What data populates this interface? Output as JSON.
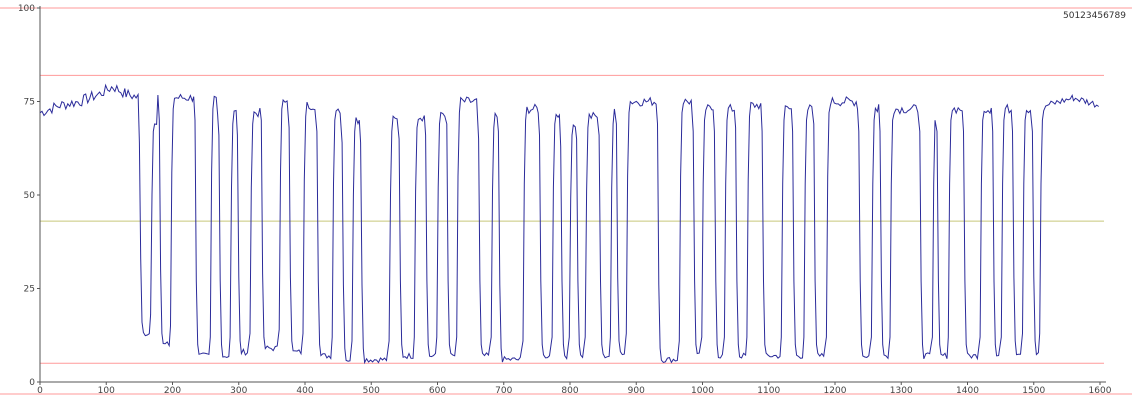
{
  "chart_data": {
    "type": "line",
    "title": "",
    "xlabel": "",
    "ylabel": "",
    "xlim": [
      0,
      1600
    ],
    "ylim": [
      0,
      100
    ],
    "x_ticks": [
      0,
      100,
      200,
      300,
      400,
      500,
      600,
      700,
      800,
      900,
      1000,
      1100,
      1200,
      1300,
      1400,
      1500,
      1600
    ],
    "y_ticks": [
      0,
      25,
      50,
      75,
      100
    ],
    "grid": false,
    "identifier_text": "50123456789",
    "colors": {
      "series": "#2b2b9a",
      "upper_limit": "#ff9a9a",
      "lower_limit": "#ff9a9a",
      "center_line": "#c8c87a",
      "axis": "#555555"
    },
    "reference_lines": [
      {
        "role": "top-border",
        "y": 100
      },
      {
        "role": "upper-limit",
        "y": 82
      },
      {
        "role": "center",
        "y": 43
      },
      {
        "role": "lower-limit",
        "y": 5
      }
    ],
    "series": [
      {
        "low_level": 7,
        "start_segment": {
          "x": [
            0,
            30,
            60,
            90,
            110,
            130,
            150
          ],
          "y": [
            72,
            74,
            75,
            77,
            79,
            77,
            76
          ]
        },
        "pulses": [
          {
            "fall": 152,
            "rise": 168,
            "low": 13,
            "high": 70
          },
          {
            "fall": 182,
            "rise": 198,
            "low": 10,
            "high": 76
          },
          {
            "fall": 236,
            "rise": 258,
            "low": 7,
            "high": 76
          },
          {
            "fall": 272,
            "rise": 288,
            "low": 7,
            "high": 72
          },
          {
            "fall": 300,
            "rise": 318,
            "low": 8,
            "high": 72
          },
          {
            "fall": 336,
            "rise": 362,
            "low": 9,
            "high": 76
          },
          {
            "fall": 378,
            "rise": 398,
            "low": 8,
            "high": 74
          },
          {
            "fall": 420,
            "rise": 442,
            "low": 7,
            "high": 73
          },
          {
            "fall": 458,
            "rise": 472,
            "low": 6,
            "high": 70
          },
          {
            "fall": 486,
            "rise": 528,
            "low": 6,
            "high": 70
          },
          {
            "fall": 544,
            "rise": 566,
            "low": 7,
            "high": 71
          },
          {
            "fall": 584,
            "rise": 600,
            "low": 7,
            "high": 72
          },
          {
            "fall": 616,
            "rise": 630,
            "low": 7,
            "high": 75
          },
          {
            "fall": 664,
            "rise": 682,
            "low": 7,
            "high": 71
          },
          {
            "fall": 694,
            "rise": 730,
            "low": 6,
            "high": 73
          },
          {
            "fall": 756,
            "rise": 774,
            "low": 7,
            "high": 72
          },
          {
            "fall": 788,
            "rise": 800,
            "low": 7,
            "high": 69
          },
          {
            "fall": 812,
            "rise": 824,
            "low": 7,
            "high": 71
          },
          {
            "fall": 846,
            "rise": 862,
            "low": 7,
            "high": 72
          },
          {
            "fall": 872,
            "rise": 886,
            "low": 8,
            "high": 75
          },
          {
            "fall": 934,
            "rise": 966,
            "low": 6,
            "high": 75
          },
          {
            "fall": 988,
            "rise": 1000,
            "low": 7,
            "high": 73
          },
          {
            "fall": 1020,
            "rise": 1034,
            "low": 7,
            "high": 73
          },
          {
            "fall": 1052,
            "rise": 1068,
            "low": 7,
            "high": 74
          },
          {
            "fall": 1092,
            "rise": 1120,
            "low": 7,
            "high": 73
          },
          {
            "fall": 1138,
            "rise": 1154,
            "low": 7,
            "high": 73
          },
          {
            "fall": 1170,
            "rise": 1188,
            "low": 7,
            "high": 75
          },
          {
            "fall": 1238,
            "rise": 1256,
            "low": 7,
            "high": 73
          },
          {
            "fall": 1270,
            "rise": 1284,
            "low": 7,
            "high": 73
          },
          {
            "fall": 1330,
            "rise": 1348,
            "low": 7,
            "high": 73
          },
          {
            "fall": 1356,
            "rise": 1372,
            "low": 7,
            "high": 73
          },
          {
            "fall": 1396,
            "rise": 1420,
            "low": 7,
            "high": 73
          },
          {
            "fall": 1440,
            "rise": 1452,
            "low": 7,
            "high": 73
          },
          {
            "fall": 1470,
            "rise": 1484,
            "low": 8,
            "high": 73
          },
          {
            "fall": 1500,
            "rise": 1510,
            "low": 8,
            "high": 73
          }
        ],
        "end_segment": {
          "x": [
            1520,
            1540,
            1560,
            1580,
            1600
          ],
          "y": [
            74,
            75,
            76,
            75,
            74
          ]
        }
      }
    ]
  }
}
